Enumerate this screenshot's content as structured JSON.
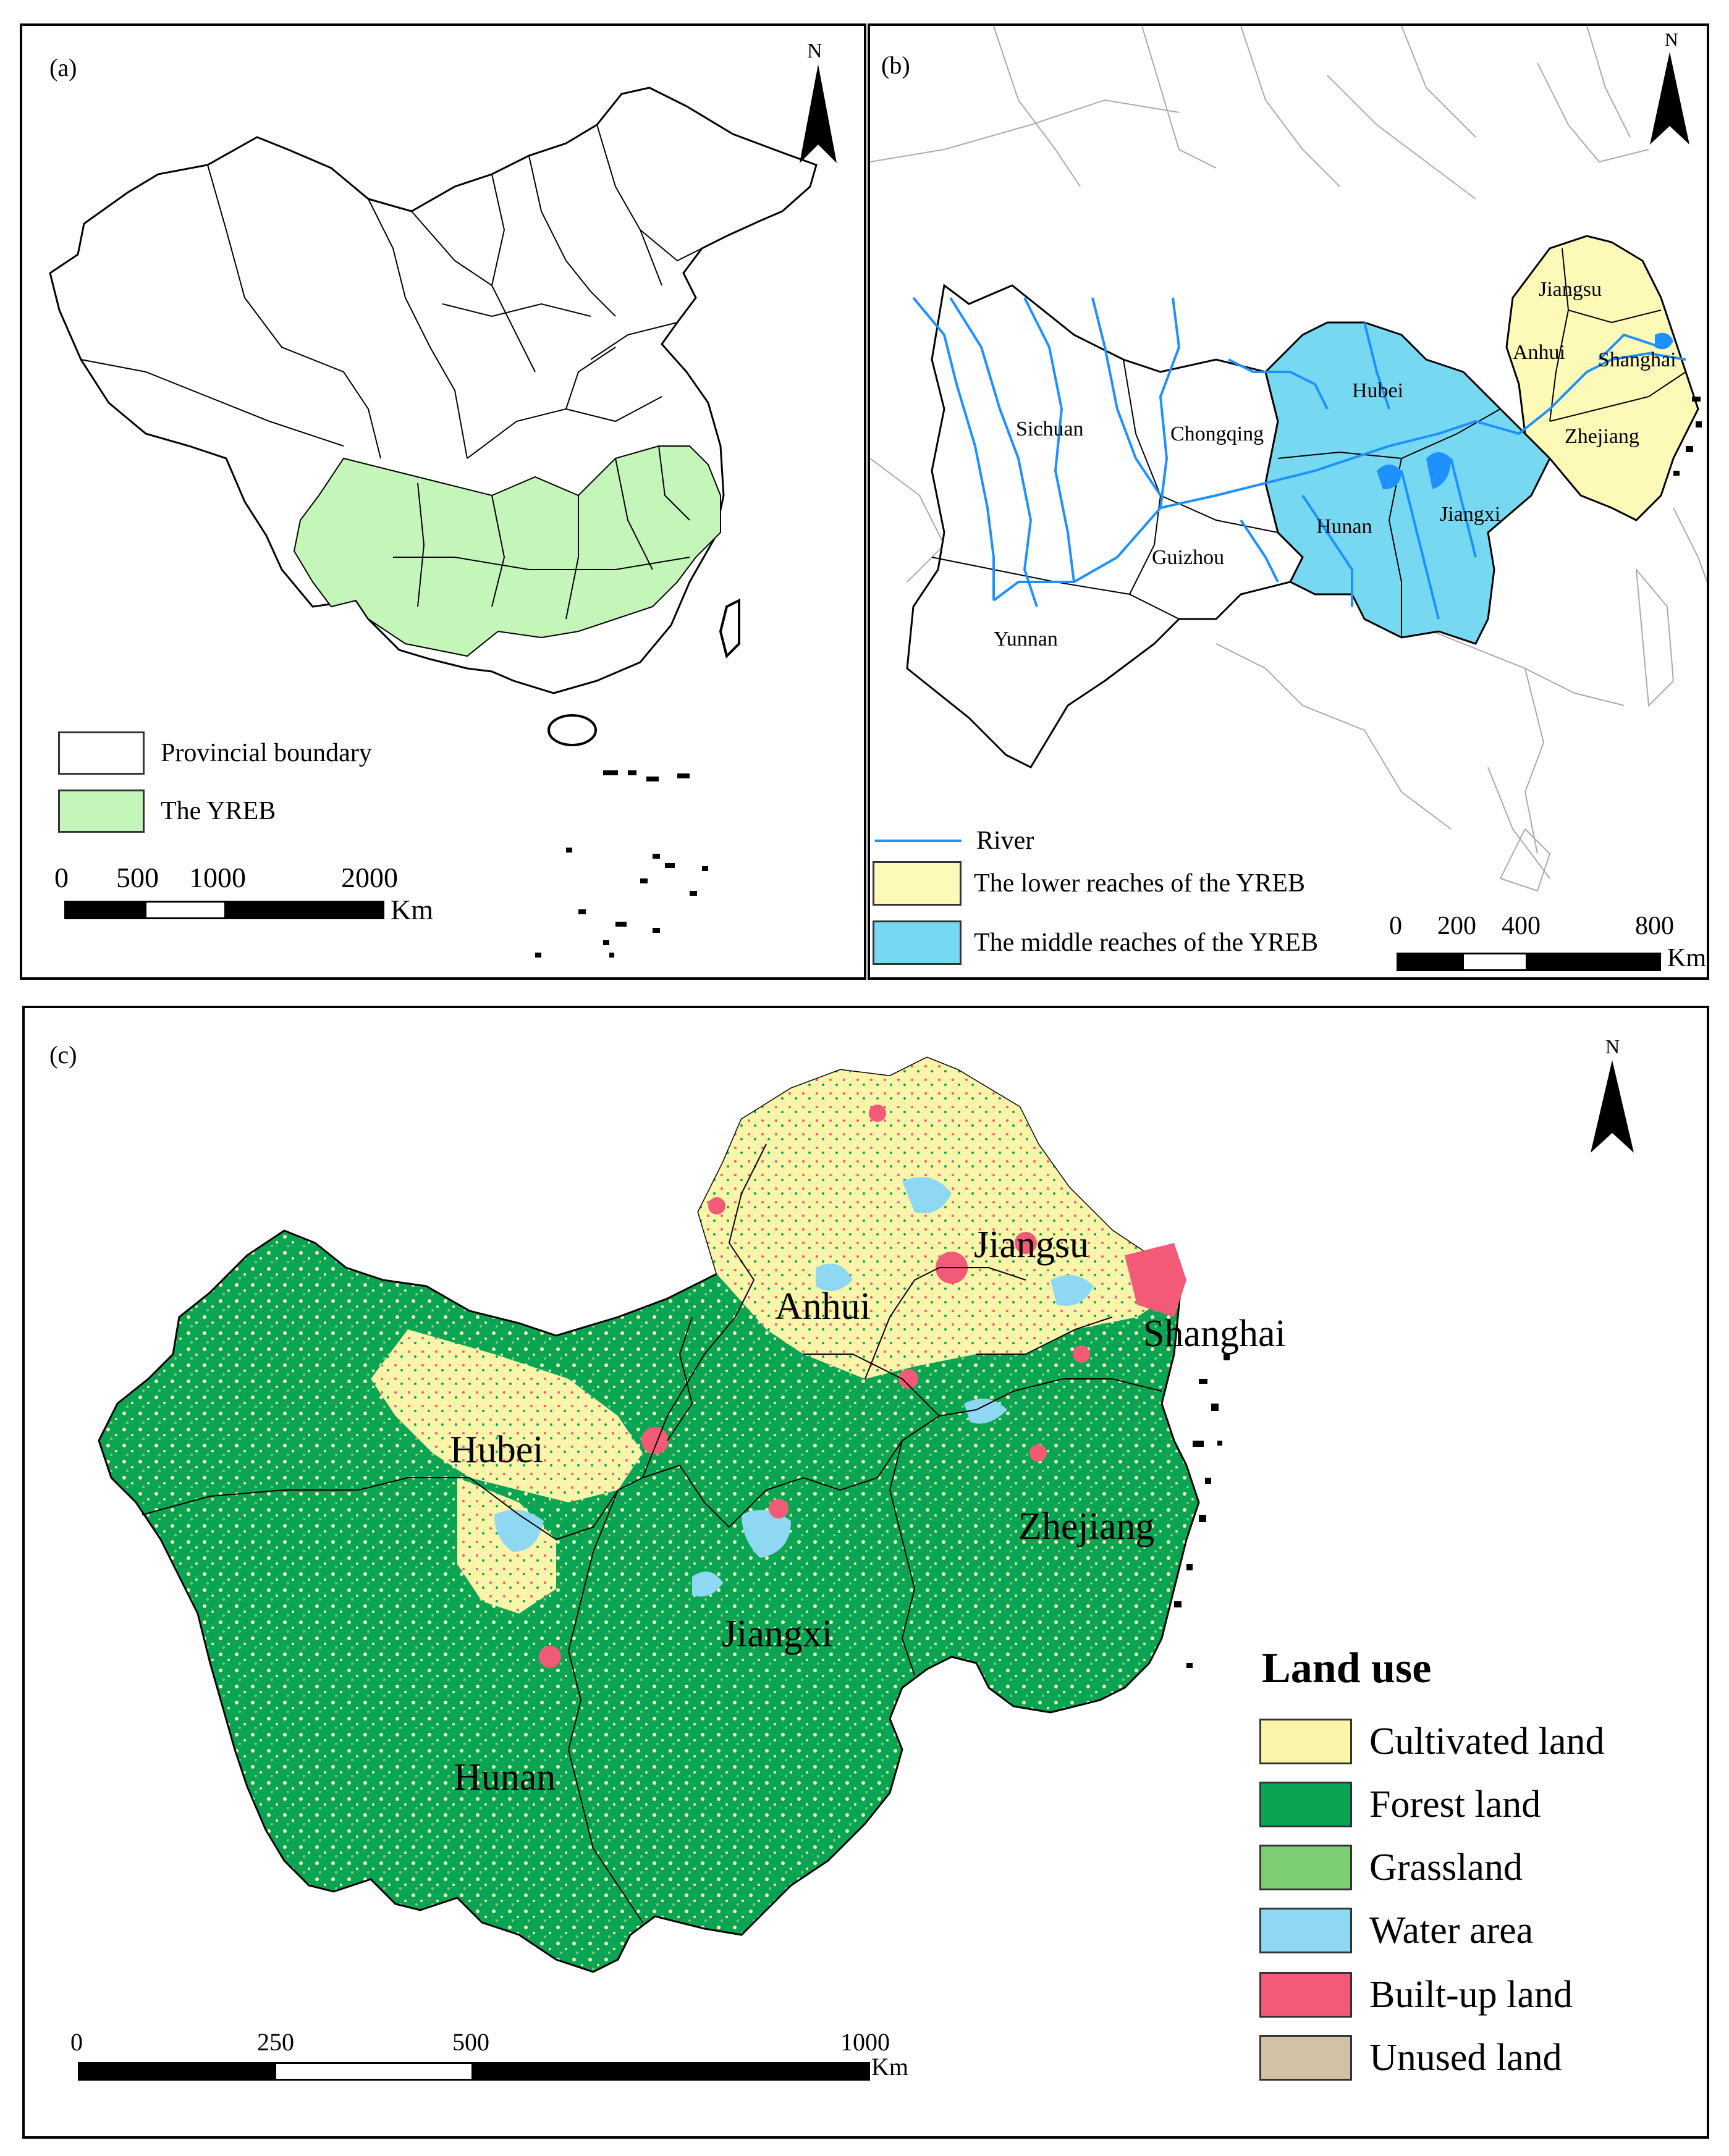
{
  "panel_a": {
    "label": "(a)",
    "north": "N",
    "legend": [
      {
        "label": "Provincial boundary",
        "color": "#ffffff"
      },
      {
        "label": "The YREB",
        "color": "#c4f5b9"
      }
    ],
    "scale": {
      "ticks": [
        "0",
        "500",
        "1000",
        "2000"
      ],
      "unit": "Km"
    }
  },
  "panel_b": {
    "label": "(b)",
    "north": "N",
    "provinces": [
      "Sichuan",
      "Chongqing",
      "Guizhou",
      "Yunnan",
      "Hubei",
      "Hunan",
      "Jiangxi",
      "Anhui",
      "Jiangsu",
      "Shanghai",
      "Zhejiang"
    ],
    "legend": [
      {
        "label": "River",
        "color": "#1e90ff",
        "kind": "line"
      },
      {
        "label": "The lower reaches of the YREB",
        "color": "#fdfab8"
      },
      {
        "label": "The middle reaches of the YREB",
        "color": "#76d9f1"
      }
    ],
    "scale": {
      "ticks": [
        "0",
        "200",
        "400",
        "800"
      ],
      "unit": "Km"
    }
  },
  "panel_c": {
    "label": "(c)",
    "north": "N",
    "provinces": [
      "Jiangsu",
      "Anhui",
      "Shanghai",
      "Hubei",
      "Zhejiang",
      "Jiangxi",
      "Hunan"
    ],
    "legend_title": "Land use",
    "legend": [
      {
        "label": "Cultivated land",
        "color": "#fbf5a9"
      },
      {
        "label": "Forest land",
        "color": "#0aa455"
      },
      {
        "label": "Grassland",
        "color": "#7dce72"
      },
      {
        "label": "Water area",
        "color": "#8fd8f3"
      },
      {
        "label": "Built-up land",
        "color": "#f25a78"
      },
      {
        "label": "Unused land",
        "color": "#d1c2a6"
      }
    ],
    "scale": {
      "ticks": [
        "0",
        "250",
        "500",
        "1000"
      ],
      "unit": "Km"
    }
  }
}
